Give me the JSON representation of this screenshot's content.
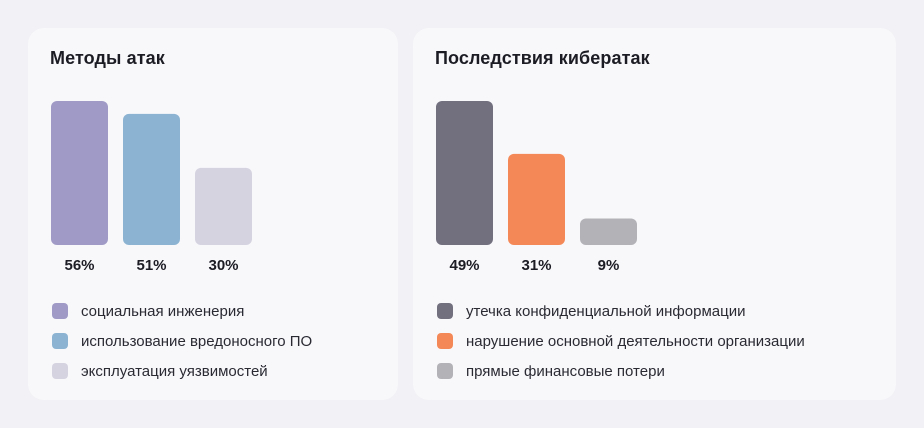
{
  "chart_data": [
    {
      "type": "bar",
      "title": "Методы атак",
      "ylim": [
        0,
        56
      ],
      "categories": [
        "социальная инженерия",
        "использование вредоносного ПО",
        "эксплуатация уязвимостей"
      ],
      "values": [
        56,
        51,
        30
      ],
      "value_labels": [
        "56%",
        "51%",
        "30%"
      ],
      "colors": [
        "#9f9bc6",
        "#8cb4d2",
        "#d6d3e0"
      ],
      "legend": [
        "социальная инженерия",
        "использование вредоносного ПО",
        "эксплуатация уязвимостей"
      ]
    },
    {
      "type": "bar",
      "title": "Последствия кибератак",
      "ylim": [
        0,
        49
      ],
      "categories": [
        "утечка конфиденциальной информации",
        "нарушение основной деятельности организации",
        "прямые финансовые потери"
      ],
      "values": [
        49,
        31,
        9
      ],
      "value_labels": [
        "49%",
        "31%",
        "9%"
      ],
      "colors": [
        "#72707f",
        "#f48957",
        "#b3b3b7"
      ],
      "legend": [
        "утечка конфиденциальной информации",
        "нарушение основной деятельности организации",
        "прямые финансовые потери"
      ]
    }
  ]
}
